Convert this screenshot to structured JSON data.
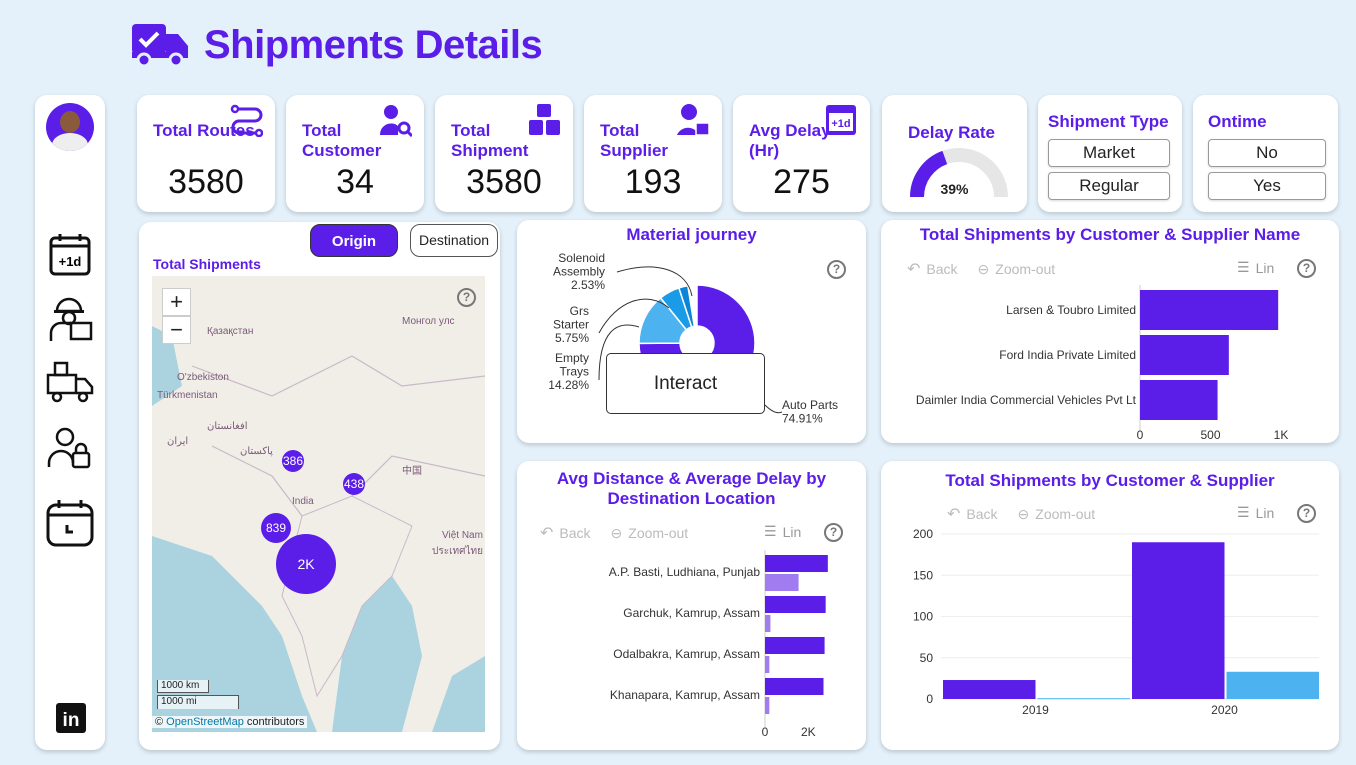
{
  "header": {
    "title": "Shipments Details",
    "icon": "delivery-truck-check-icon"
  },
  "colors": {
    "accent": "#5b1de8",
    "light_purple": "#a07cf0",
    "light_blue": "#4db3f0",
    "background": "#e4f1fa"
  },
  "sidebar": {
    "items": [
      {
        "icon": "avatar"
      },
      {
        "icon": "calendar-plus-one-icon"
      },
      {
        "icon": "worker-icon"
      },
      {
        "icon": "truck-boxes-icon"
      },
      {
        "icon": "user-lock-icon"
      },
      {
        "icon": "calendar-clock-icon"
      },
      {
        "icon": "linkedin-icon"
      }
    ]
  },
  "kpis": [
    {
      "label": "Total Routes",
      "value": "3580",
      "icon": "route-icon"
    },
    {
      "label": "Total Customer",
      "value": "34",
      "icon": "user-search-icon"
    },
    {
      "label": "Total Shipment",
      "value": "3580",
      "icon": "boxes-icon"
    },
    {
      "label": "Total Supplier",
      "value": "193",
      "icon": "supplier-icon"
    },
    {
      "label": "Avg Delay (Hr)",
      "value": "275",
      "icon": "calendar-plus-one-icon"
    }
  ],
  "delay_rate": {
    "label": "Delay Rate",
    "value": "39%",
    "fraction": 0.39
  },
  "shipment_type": {
    "label": "Shipment Type",
    "options": [
      "Market",
      "Regular"
    ]
  },
  "ontime": {
    "label": "Ontime",
    "options": [
      "No",
      "Yes"
    ]
  },
  "map": {
    "title": "Total Shipments",
    "tabs": [
      "Origin",
      "Destination"
    ],
    "active_tab": "Origin",
    "zoom_in": "+",
    "zoom_out": "−",
    "place_labels": [
      "Қазақстан",
      "Монгол улс",
      "O'zbekiston",
      "Türkmenistan",
      "افغانستان",
      "ایران",
      "پاکستان",
      "中国",
      "India",
      "Việt Nam",
      "ประเทศไทย"
    ],
    "clusters": [
      "386",
      "438",
      "839",
      "2K"
    ],
    "scale": [
      "1000 km",
      "1000 mi"
    ],
    "attribution_prefix": "© ",
    "attribution_link": "OpenStreetMap",
    "attribution_suffix": " contributors"
  },
  "toolbar": {
    "back": "Back",
    "zoom_out": "Zoom-out",
    "lin": "Lin",
    "help": "?"
  },
  "interact_label": "Interact",
  "chart_data": [
    {
      "type": "pie",
      "title": "Material journey",
      "donut": true,
      "slices": [
        {
          "label": "Auto Parts",
          "value": 74.91,
          "display": "74.91%"
        },
        {
          "label": "Empty Trays",
          "value": 14.28,
          "display": "14.28%"
        },
        {
          "label": "Grs Starter",
          "value": 5.75,
          "display": "5.75%"
        },
        {
          "label": "Solenoid Assembly",
          "value": 2.53,
          "display": "2.53%"
        }
      ]
    },
    {
      "type": "bar",
      "orientation": "horizontal",
      "title": "Total Shipments by Customer & Supplier Name",
      "categories": [
        "Larsen & Toubro Limited",
        "Ford India Private Limited",
        "Daimler India Commercial Vehicles Pvt Lt"
      ],
      "values": [
        980,
        630,
        550
      ],
      "xlim": [
        0,
        1000
      ],
      "ticks": [
        "0",
        "500",
        "1K"
      ]
    },
    {
      "type": "bar",
      "orientation": "horizontal",
      "title": "Avg Distance & Average Delay by Destination Location",
      "categories": [
        "A.P. Basti, Ludhiana, Punjab",
        "Garchuk, Kamrup, Assam",
        "Odalbakra, Kamrup, Assam",
        "Khanapara, Kamrup, Assam"
      ],
      "series": [
        {
          "values": [
            2900,
            2800,
            2750,
            2700
          ]
        },
        {
          "values": [
            1550,
            250,
            200,
            200
          ]
        }
      ],
      "xlim": [
        0,
        3000
      ],
      "ticks": [
        "0",
        "2K"
      ]
    },
    {
      "type": "bar",
      "title": "Total Shipments by Customer & Supplier",
      "categories": [
        "2019",
        "2020"
      ],
      "series": [
        {
          "values": [
            23,
            190
          ]
        },
        {
          "values": [
            1,
            33
          ]
        }
      ],
      "ylim": [
        0,
        200
      ],
      "ticks": [
        "0",
        "50",
        "100",
        "150",
        "200"
      ],
      "grid": true
    }
  ]
}
